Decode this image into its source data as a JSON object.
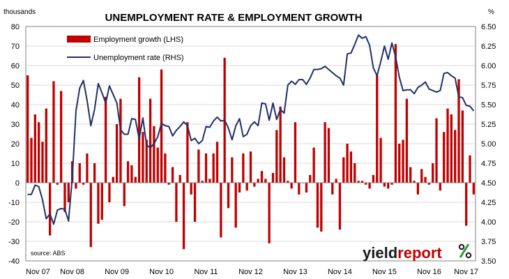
{
  "chart_data": {
    "type": "bar",
    "title": "UNEMPLOYMENT RATE & EMPLOYMENT GROWTH",
    "left_axis": {
      "label": "thousands",
      "ylim": [
        -40,
        80
      ],
      "ticks": [
        "80",
        "70",
        "60",
        "50",
        "40",
        "30",
        "20",
        "10",
        "0",
        "-10",
        "-20",
        "-30",
        "-40"
      ]
    },
    "right_axis": {
      "label": "%",
      "ylim": [
        3.5,
        6.5
      ],
      "ticks": [
        "6.50",
        "6.25",
        "6.00",
        "5.75",
        "5.50",
        "5.25",
        "5.00",
        "4.75",
        "4.50",
        "4.25",
        "4.00",
        "3.75",
        "3.50"
      ]
    },
    "x_ticks": [
      "Nov 07",
      "Nov 08",
      "Nov 09",
      "Nov 10",
      "Nov 11",
      "Nov 12",
      "Nov 13",
      "Nov 14",
      "Nov 15",
      "Nov 16",
      "Nov 17"
    ],
    "grid": true,
    "legend_placement": "top-left",
    "source": "source: ABS",
    "logo": "yieldreport",
    "series": [
      {
        "name": "Employment growth (LHS)",
        "type": "bar",
        "axis": "left",
        "color": "#c00000",
        "values": [
          55,
          23,
          35,
          31,
          21,
          38,
          -27,
          52,
          -1,
          47,
          -15,
          -10,
          11,
          -3,
          10,
          -1,
          15,
          -33,
          10,
          -21,
          -19,
          44,
          -10,
          3,
          30,
          43,
          -12,
          11,
          9,
          3,
          54,
          26,
          22,
          43,
          29,
          18,
          58,
          15,
          -1,
          8,
          -20,
          4,
          -34,
          31,
          -6,
          -20,
          17,
          1,
          15,
          2,
          15,
          21,
          -28,
          64,
          -13,
          13,
          -23,
          -5,
          15,
          -4,
          16,
          -2,
          2,
          6,
          2,
          -31,
          5,
          27,
          39,
          13,
          1,
          -3,
          31,
          -6,
          0,
          -5,
          4,
          18,
          -23,
          -25,
          31,
          28,
          -6,
          2,
          -24,
          13,
          20,
          16,
          10,
          1,
          1,
          -1,
          -3,
          4,
          55,
          23,
          -2,
          -3,
          -1,
          71,
          20,
          22,
          43,
          8,
          1,
          -6,
          7,
          3,
          -1,
          10,
          33,
          -4,
          26,
          38,
          35,
          27,
          53,
          37,
          -22,
          14,
          -6
        ]
      },
      {
        "name": "Unemployment rate (RHS)",
        "type": "line",
        "axis": "right",
        "color": "#1f2f66",
        "values": [
          4.35,
          4.35,
          4.47,
          4.45,
          4.28,
          4.04,
          4.1,
          3.97,
          4.15,
          4.17,
          4.16,
          4.01,
          4.56,
          5.42,
          5.71,
          5.81,
          5.55,
          5.23,
          5.44,
          5.77,
          5.65,
          5.52,
          5.74,
          5.63,
          5.52,
          5.18,
          5.12,
          5.12,
          5.32,
          5.31,
          5.06,
          5.33,
          4.98,
          4.95,
          5.0,
          5.09,
          5.26,
          5.23,
          5.22,
          5.1,
          5.17,
          5.22,
          5.28,
          5.23,
          5.04,
          5.07,
          5.0,
          5.04,
          5.22,
          5.21,
          5.29,
          5.34,
          5.29,
          5.3,
          5.2,
          5.05,
          5.23,
          5.32,
          5.09,
          5.12,
          5.23,
          5.28,
          5.23,
          5.52,
          5.51,
          5.3,
          5.52,
          5.31,
          5.44,
          5.39,
          5.75,
          5.8,
          5.76,
          5.82,
          5.82,
          5.76,
          5.84,
          5.95,
          5.95,
          5.96,
          5.99,
          5.95,
          5.91,
          5.87,
          5.84,
          5.75,
          6.15,
          6.16,
          6.27,
          6.39,
          6.35,
          6.37,
          6.26,
          5.97,
          5.87,
          6.05,
          6.25,
          6.08,
          6.29,
          6.11,
          5.85,
          5.68,
          5.69,
          5.69,
          5.64,
          5.72,
          5.75,
          5.79,
          5.7,
          5.68,
          5.66,
          5.68,
          5.9,
          5.91,
          5.87,
          5.84,
          5.6,
          5.59,
          5.49,
          5.48,
          5.42
        ]
      }
    ]
  }
}
